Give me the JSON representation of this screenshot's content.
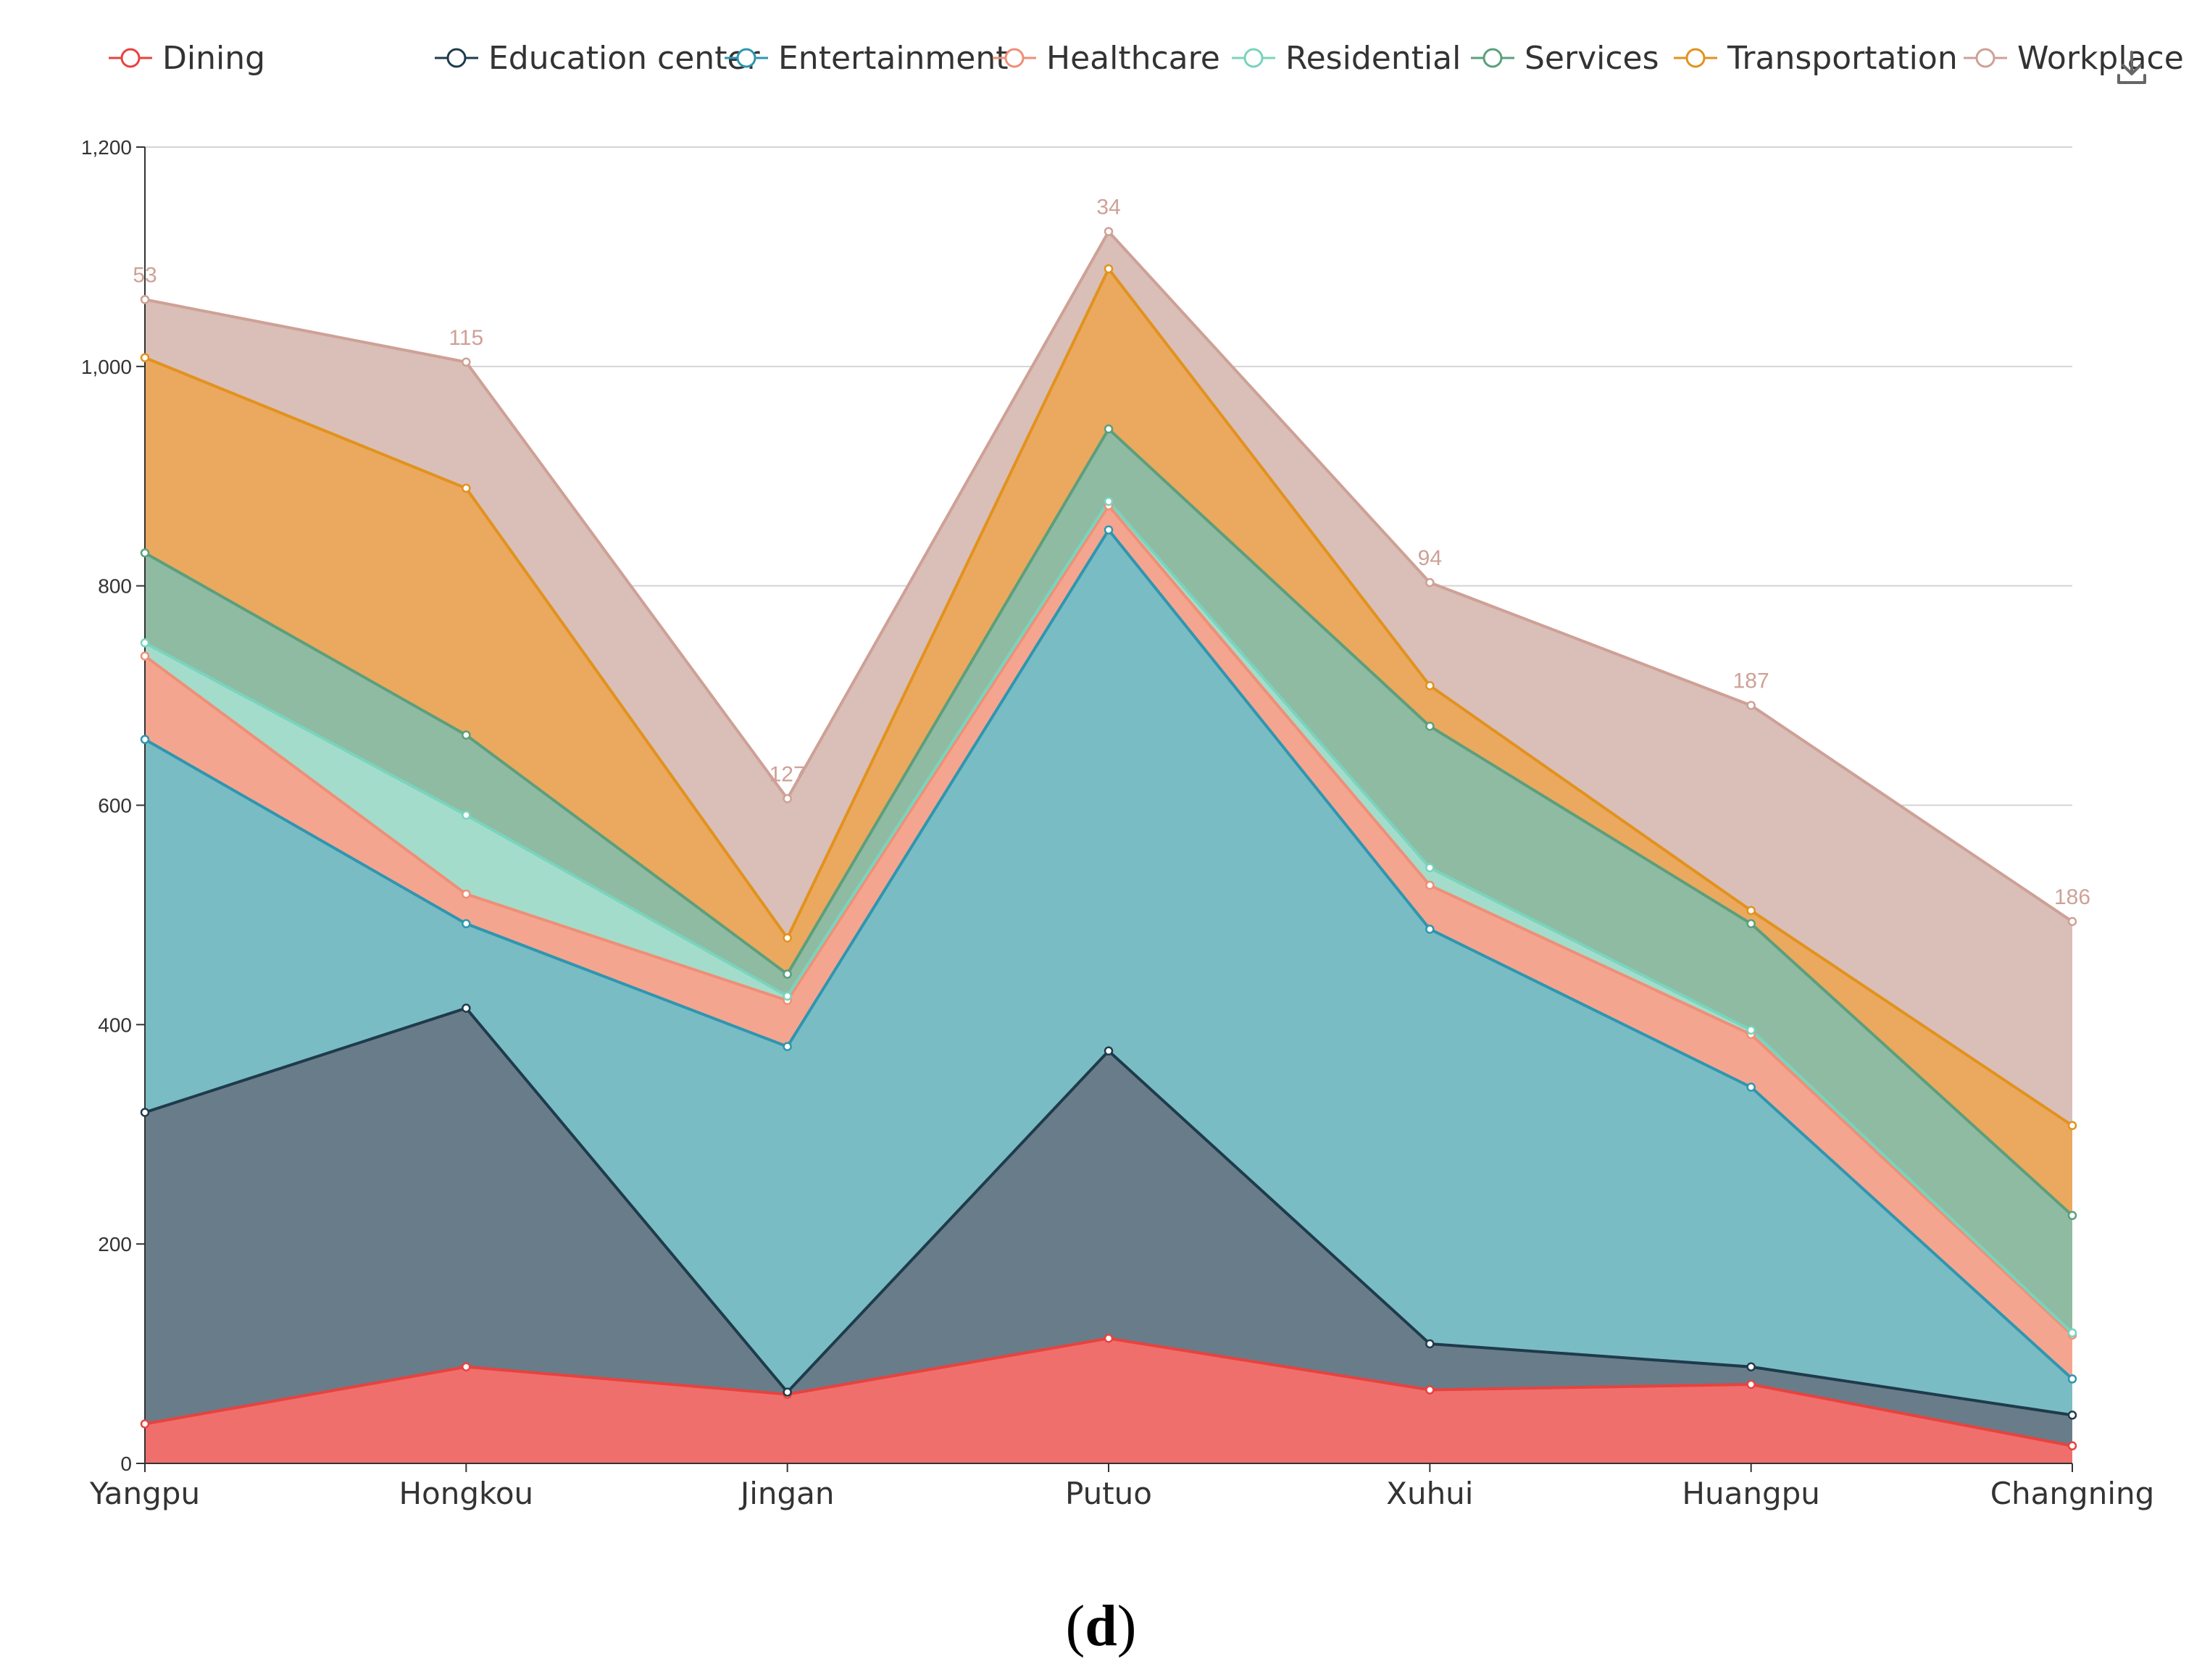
{
  "chart_data": {
    "type": "area",
    "stacked": true,
    "categories": [
      "Yangpu",
      "Hongkou",
      "Jingan",
      "Putuo",
      "Xuhui",
      "Huangpu",
      "Changning"
    ],
    "series": [
      {
        "name": "Dining",
        "color": "#e8423f",
        "fill": "#ef6f6c",
        "values": [
          36,
          88,
          63,
          114,
          67,
          72,
          16
        ]
      },
      {
        "name": "Education center",
        "color": "#1e3b4c",
        "fill": "#697c89",
        "values": [
          284,
          327,
          2,
          262,
          42,
          16,
          28
        ]
      },
      {
        "name": "Entertainment",
        "color": "#2e96b0",
        "fill": "#7abcc3",
        "values": [
          340,
          77,
          315,
          475,
          378,
          255,
          33
        ]
      },
      {
        "name": "Healthcare",
        "color": "#ef8f77",
        "fill": "#f4a590",
        "values": [
          76,
          27,
          42,
          22,
          40,
          48,
          40
        ]
      },
      {
        "name": "Residential",
        "color": "#79d4bd",
        "fill": "#a4dccb",
        "values": [
          12,
          72,
          4,
          4,
          16,
          4,
          2
        ]
      },
      {
        "name": "Services",
        "color": "#5b9f7d",
        "fill": "#8fbba2",
        "values": [
          82,
          73,
          20,
          66,
          129,
          97,
          107
        ]
      },
      {
        "name": "Transportation",
        "color": "#e2921d",
        "fill": "#eaa95e",
        "values": [
          178,
          225,
          33,
          146,
          37,
          12,
          82
        ]
      },
      {
        "name": "Workplace",
        "color": "#cea196",
        "fill": "#dabeb8",
        "values": [
          53,
          115,
          127,
          34,
          94,
          187,
          186
        ]
      }
    ],
    "top_labels": [
      "53",
      "115",
      "127",
      "34",
      "94",
      "187",
      "186"
    ],
    "ylim": [
      0,
      1200
    ],
    "yticks": [
      "0",
      "200",
      "400",
      "600",
      "800",
      "1,000",
      "1,200"
    ],
    "ytick_values": [
      0,
      200,
      400,
      600,
      800,
      1000,
      1200
    ],
    "grid": true,
    "legend_position": "top",
    "title": "",
    "xlabel": "",
    "ylabel": ""
  },
  "panel_label": {
    "open": "(",
    "letter": "d",
    "close": ")"
  },
  "toolbox": {
    "icon": "download-icon"
  }
}
